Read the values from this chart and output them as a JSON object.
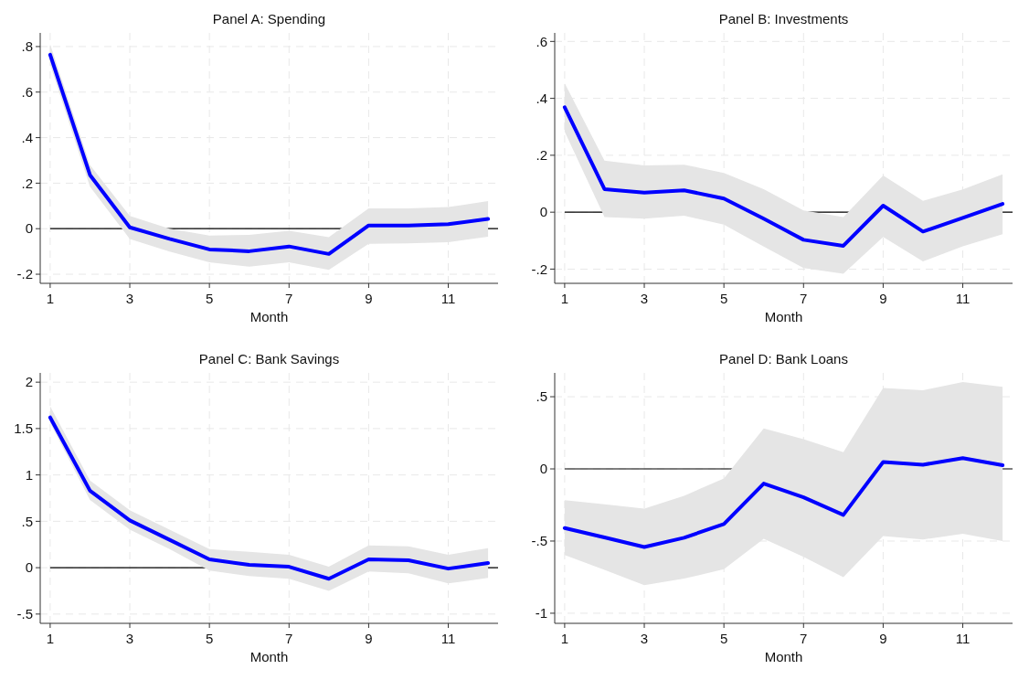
{
  "chart_data": [
    {
      "type": "line",
      "title": "Panel A: Spending",
      "xlabel": "Month",
      "x": [
        1,
        2,
        3,
        4,
        5,
        6,
        7,
        8,
        9,
        10,
        11,
        12
      ],
      "xlim": [
        0.75,
        12.25
      ],
      "xticks": [
        1,
        3,
        5,
        7,
        9,
        11
      ],
      "ylim": [
        -0.24,
        0.86
      ],
      "yticks": [
        {
          "value": -0.2,
          "label": "-.2"
        },
        0,
        {
          "value": 0.2,
          "label": ".2"
        },
        {
          "value": 0.4,
          "label": ".4"
        },
        {
          "value": 0.6,
          "label": ".6"
        },
        {
          "value": 0.8,
          "label": ".8"
        }
      ],
      "grid": true,
      "line_style": "solid",
      "ref_lines": [
        {
          "axis": "y",
          "value": 0,
          "color": "#000000"
        }
      ],
      "series": [
        {
          "color": "#0000ff",
          "values": [
            0.764,
            0.236,
            0.006,
            -0.045,
            -0.091,
            -0.099,
            -0.078,
            -0.111,
            0.014,
            0.014,
            0.02,
            0.043
          ],
          "lower": [
            0.72,
            0.185,
            -0.045,
            -0.1,
            -0.148,
            -0.167,
            -0.148,
            -0.181,
            -0.066,
            -0.064,
            -0.059,
            -0.035
          ],
          "upper": [
            0.81,
            0.28,
            0.056,
            0.0,
            -0.03,
            -0.027,
            -0.009,
            -0.037,
            0.089,
            0.089,
            0.095,
            0.121
          ]
        }
      ]
    },
    {
      "type": "line",
      "title": "Panel B: Investments",
      "xlabel": "Month",
      "x": [
        1,
        2,
        3,
        4,
        5,
        6,
        7,
        8,
        9,
        10,
        11,
        12
      ],
      "xlim": [
        0.75,
        12.25
      ],
      "xticks": [
        1,
        3,
        5,
        7,
        9,
        11
      ],
      "ylim": [
        -0.25,
        0.63
      ],
      "yticks": [
        {
          "value": -0.2,
          "label": "-.2"
        },
        0,
        {
          "value": 0.2,
          "label": ".2"
        },
        {
          "value": 0.4,
          "label": ".4"
        },
        {
          "value": 0.6,
          "label": ".6"
        }
      ],
      "grid": true,
      "line_style": "solid",
      "ref_lines": [
        {
          "axis": "y",
          "value": 0,
          "color": "#000000"
        }
      ],
      "series": [
        {
          "color": "#0000ff",
          "values": [
            0.369,
            0.081,
            0.069,
            0.077,
            0.048,
            -0.023,
            -0.097,
            -0.118,
            0.023,
            -0.068,
            -0.02,
            0.029
          ],
          "lower": [
            0.283,
            -0.017,
            -0.023,
            -0.012,
            -0.044,
            -0.121,
            -0.196,
            -0.216,
            -0.087,
            -0.173,
            -0.12,
            -0.077
          ],
          "upper": [
            0.453,
            0.181,
            0.164,
            0.167,
            0.138,
            0.081,
            0.006,
            -0.017,
            0.129,
            0.04,
            0.08,
            0.133
          ]
        }
      ]
    },
    {
      "type": "line",
      "title": "Panel C: Bank Savings",
      "xlabel": "Month",
      "x": [
        1,
        2,
        3,
        4,
        5,
        6,
        7,
        8,
        9,
        10,
        11,
        12
      ],
      "xlim": [
        0.75,
        12.25
      ],
      "xticks": [
        1,
        3,
        5,
        7,
        9,
        11
      ],
      "ylim": [
        -0.6,
        2.1
      ],
      "yticks": [
        {
          "value": -0.5,
          "label": "-.5"
        },
        0,
        {
          "value": 0.5,
          "label": ".5"
        },
        1,
        1.5,
        2
      ],
      "grid": true,
      "line_style": "solid",
      "ref_lines": [
        {
          "axis": "y",
          "value": 0,
          "color": "#000000"
        }
      ],
      "series": [
        {
          "color": "#0000ff",
          "values": [
            1.62,
            0.83,
            0.51,
            0.3,
            0.09,
            0.03,
            0.01,
            -0.12,
            0.09,
            0.08,
            -0.01,
            0.05
          ],
          "lower": [
            1.56,
            0.73,
            0.41,
            0.2,
            -0.03,
            -0.09,
            -0.12,
            -0.25,
            -0.04,
            -0.06,
            -0.17,
            -0.11
          ],
          "upper": [
            1.74,
            0.94,
            0.62,
            0.41,
            0.2,
            0.17,
            0.14,
            0.01,
            0.24,
            0.23,
            0.14,
            0.21
          ]
        }
      ]
    },
    {
      "type": "line",
      "title": "Panel D: Bank Loans",
      "xlabel": "Month",
      "x": [
        1,
        2,
        3,
        4,
        5,
        6,
        7,
        8,
        9,
        10,
        11,
        12
      ],
      "xlim": [
        0.75,
        12.25
      ],
      "xticks": [
        1,
        3,
        5,
        7,
        9,
        11
      ],
      "ylim": [
        -1.07,
        0.665
      ],
      "yticks": [
        -1,
        {
          "value": -0.5,
          "label": "-.5"
        },
        0,
        {
          "value": 0.5,
          "label": ".5"
        }
      ],
      "grid": true,
      "line_style": "solid",
      "ref_lines": [
        {
          "axis": "y",
          "value": 0,
          "color": "#000000"
        }
      ],
      "series": [
        {
          "color": "#0000ff",
          "values": [
            -0.41,
            -0.475,
            -0.541,
            -0.477,
            -0.382,
            -0.102,
            -0.197,
            -0.319,
            0.048,
            0.029,
            0.075,
            0.025
          ],
          "lower": [
            -0.597,
            -0.7,
            -0.805,
            -0.76,
            -0.695,
            -0.484,
            -0.609,
            -0.751,
            -0.466,
            -0.489,
            -0.45,
            -0.5
          ],
          "upper": [
            -0.217,
            -0.245,
            -0.276,
            -0.186,
            -0.066,
            0.281,
            0.206,
            0.115,
            0.561,
            0.545,
            0.602,
            0.568
          ]
        }
      ]
    }
  ]
}
